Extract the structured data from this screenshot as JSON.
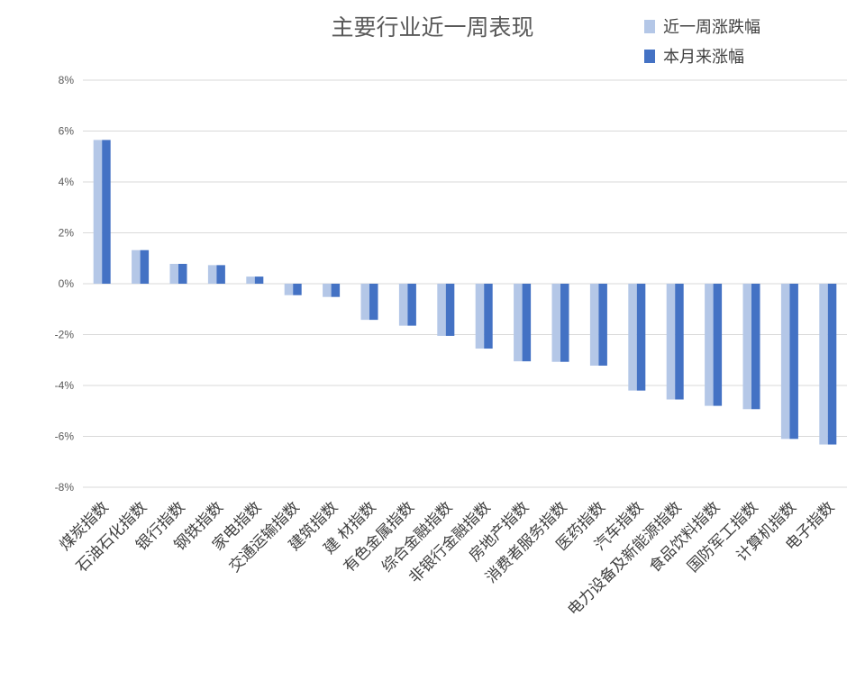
{
  "chart_data": {
    "type": "bar",
    "title": "主要行业近一周表现",
    "categories": [
      "煤炭指数",
      "石油石化指数",
      "银行指数",
      "钢铁指数",
      "家电指数",
      "交通运输指数",
      "建筑指数",
      "建 材指数",
      "有色金属指数",
      "综合金融指数",
      "非银行金融指数",
      "房地产指数",
      "消费者服务指数",
      "医药指数",
      "汽车指数",
      "电力设备及新能源指数",
      "食品饮料指数",
      "国防军工指数",
      "计算机指数",
      "电子指数"
    ],
    "series": [
      {
        "name": "近一周涨跌幅",
        "color": "#b4c7e7",
        "values": [
          5.65,
          1.32,
          0.78,
          0.73,
          0.28,
          -0.45,
          -0.52,
          -1.42,
          -1.65,
          -2.05,
          -2.55,
          -3.05,
          -3.07,
          -3.22,
          -4.2,
          -4.55,
          -4.8,
          -4.93,
          -6.1,
          -6.32
        ]
      },
      {
        "name": "本月来涨幅",
        "color": "#4472c4",
        "values": [
          5.65,
          1.32,
          0.78,
          0.73,
          0.28,
          -0.45,
          -0.52,
          -1.42,
          -1.65,
          -2.05,
          -2.55,
          -3.05,
          -3.07,
          -3.22,
          -4.2,
          -4.55,
          -4.8,
          -4.93,
          -6.1,
          -6.32
        ]
      }
    ],
    "ylim": [
      -8,
      8
    ],
    "yticks": [
      "8%",
      "6%",
      "4%",
      "2%",
      "0%",
      "-2%",
      "-4%",
      "-6%",
      "-8%"
    ],
    "grid": true,
    "legend_position": "top-right"
  }
}
